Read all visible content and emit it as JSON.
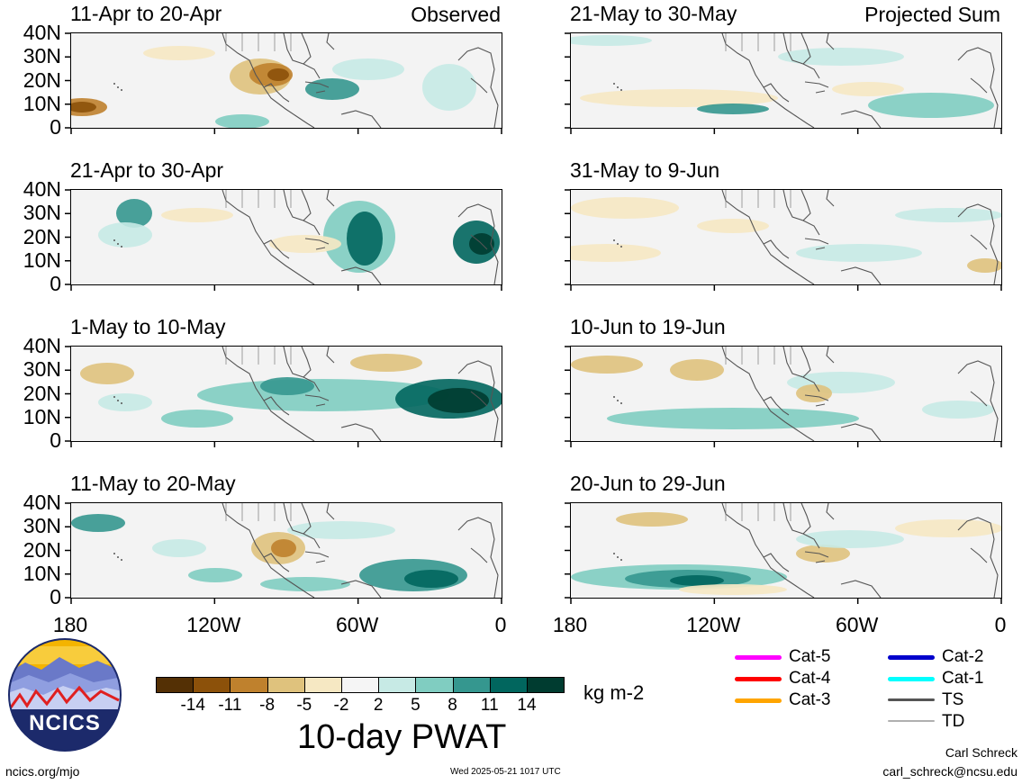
{
  "panels": [
    {
      "title": "11-Apr to 20-Apr",
      "label": "Observed"
    },
    {
      "title": "21-May to 30-May",
      "label": "Projected Sum"
    },
    {
      "title": "21-Apr to 30-Apr",
      "label": ""
    },
    {
      "title": "31-May to 9-Jun",
      "label": ""
    },
    {
      "title": "1-May to 10-May",
      "label": ""
    },
    {
      "title": "10-Jun to 19-Jun",
      "label": ""
    },
    {
      "title": "11-May to 20-May",
      "label": ""
    },
    {
      "title": "20-Jun to 29-Jun",
      "label": ""
    }
  ],
  "y_ticks": [
    "40N",
    "30N",
    "20N",
    "10N",
    "0"
  ],
  "x_ticks": [
    "180",
    "120W",
    "60W",
    "0"
  ],
  "colorbar": {
    "colors": [
      "#543005",
      "#8c510a",
      "#bf812d",
      "#dfc27d",
      "#f6e8c3",
      "#f5f5f5",
      "#c7eae5",
      "#80cdc1",
      "#35978f",
      "#01665e",
      "#003c30"
    ],
    "labels": [
      "-14",
      "-11",
      "-8",
      "-5",
      "-2",
      "2",
      "5",
      "8",
      "11",
      "14"
    ],
    "units": "kg m-2",
    "title": "10-day PWAT"
  },
  "legend": {
    "items": [
      {
        "label": "Cat-5",
        "color": "#ff00ff"
      },
      {
        "label": "Cat-4",
        "color": "#ff0000"
      },
      {
        "label": "Cat-3",
        "color": "#ffa500"
      },
      {
        "label": "Cat-2",
        "color": "#0000cc"
      },
      {
        "label": "Cat-1",
        "color": "#00ffff"
      },
      {
        "label": "TS",
        "color": "#555555"
      },
      {
        "label": "TD",
        "color": "#b0b0b0"
      }
    ]
  },
  "logo_text": "NCICS",
  "footer": {
    "url": "ncics.org/mjo",
    "timestamp": "Wed 2025-05-21 1017 UTC",
    "author": "Carl Schreck",
    "email": "carl_schreck@ncsu.edu"
  }
}
